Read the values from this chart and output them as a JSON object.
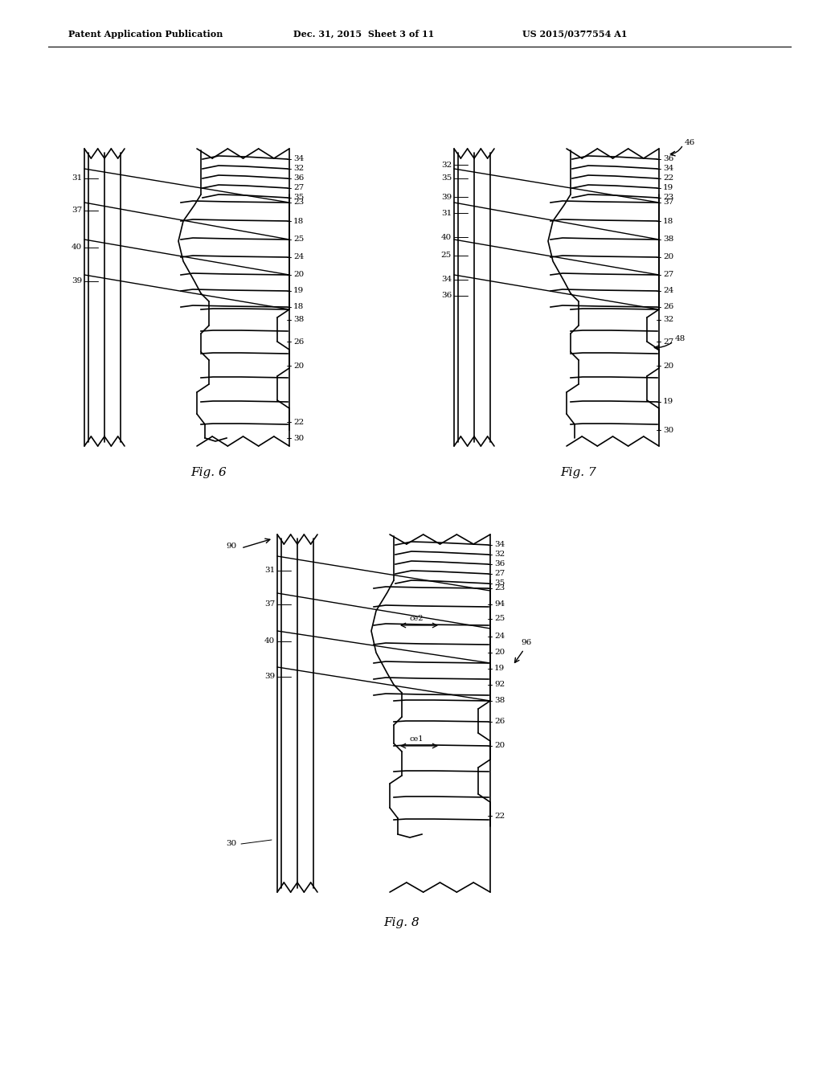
{
  "background_color": "#ffffff",
  "header_left": "Patent Application Publication",
  "header_mid": "Dec. 31, 2015  Sheet 3 of 11",
  "header_right": "US 2015/0377554 A1",
  "fig6_caption": "Fig. 6",
  "fig7_caption": "Fig. 7",
  "fig8_caption": "Fig. 8",
  "line_color": "#000000",
  "line_width": 1.2
}
